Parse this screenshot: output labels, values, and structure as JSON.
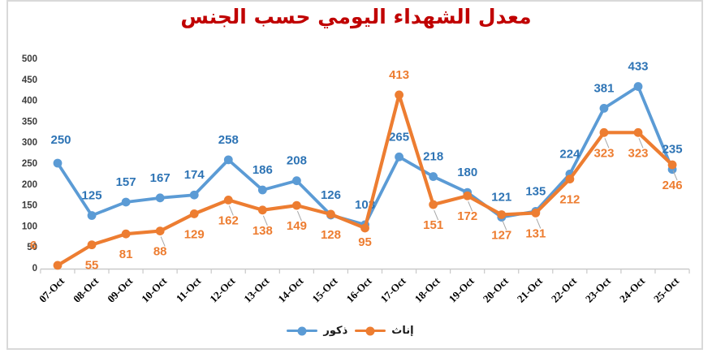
{
  "title": "معدل الشهداء اليومي حسب الجنس",
  "colors": {
    "title": "#C00000",
    "axis_line": "#C9C9C9",
    "tick_mark": "#C9C9C9",
    "y_tick_text": "#3b3b3b",
    "x_tick_text": "#000000",
    "leader_line": "#A6A6A6",
    "chart_border": "#D9D9D9"
  },
  "chart_data": {
    "type": "line",
    "title": "معدل الشهداء اليومي حسب الجنس",
    "categories": [
      "07-Oct",
      "08-Oct",
      "09-Oct",
      "10-Oct",
      "11-Oct",
      "12-Oct",
      "13-Oct",
      "14-Oct",
      "15-Oct",
      "16-Oct",
      "17-Oct",
      "18-Oct",
      "19-Oct",
      "20-Oct",
      "21-Oct",
      "22-Oct",
      "23-Oct",
      "24-Oct",
      "25-Oct"
    ],
    "series": [
      {
        "name": "ذكور",
        "color": "#5B9BD5",
        "label_color": "#2E74B5",
        "values": [
          250,
          125,
          157,
          167,
          174,
          258,
          186,
          208,
          126,
          103,
          265,
          218,
          180,
          121,
          135,
          224,
          381,
          433,
          235
        ]
      },
      {
        "name": "إناث",
        "color": "#ED7D31",
        "label_color": "#ED7D31",
        "values": [
          6,
          55,
          81,
          88,
          129,
          162,
          138,
          149,
          128,
          95,
          413,
          151,
          172,
          127,
          131,
          212,
          323,
          323,
          246
        ]
      }
    ],
    "ylim": [
      0,
      500
    ],
    "ytick_step": 50,
    "grid": "off",
    "data_labels": "on",
    "legend_position": "bottom",
    "xlabel": "",
    "ylabel": ""
  }
}
